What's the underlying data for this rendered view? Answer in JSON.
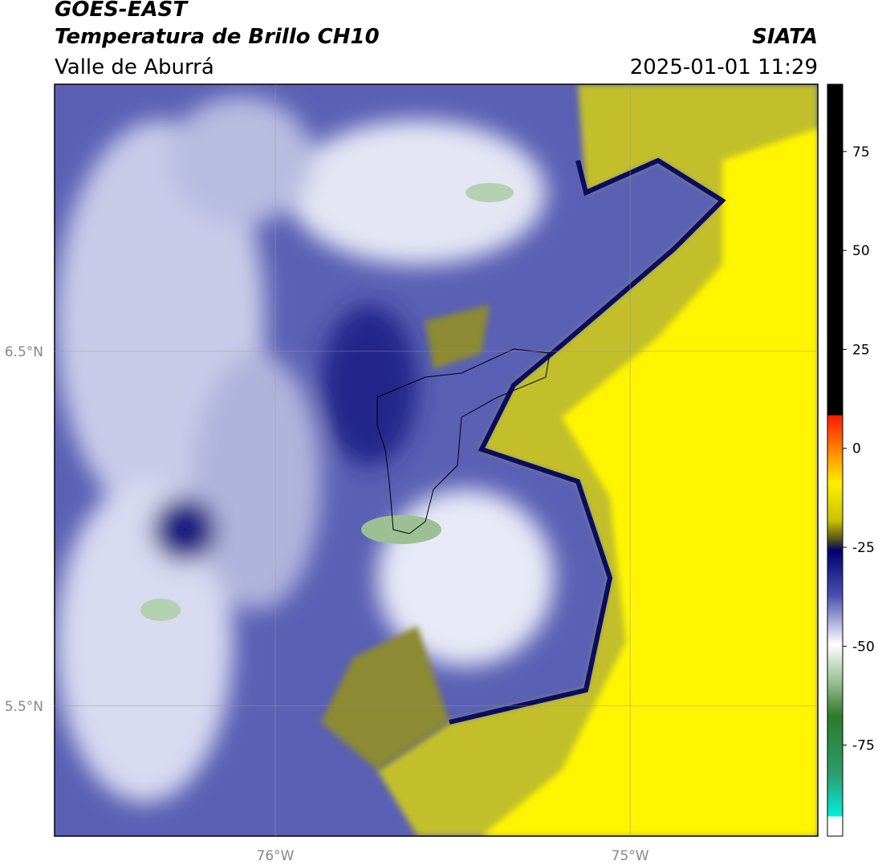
{
  "header": {
    "title": "GOES-EAST",
    "subtitle": "Temperatura de Brillo CH10",
    "region": "Valle de Aburrá",
    "source": "SIATA",
    "datetime": "2025-01-01 11:29"
  },
  "map": {
    "xlim": [
      -76.622,
      -74.471
    ],
    "ylim": [
      5.133,
      7.253
    ],
    "xticks": [
      {
        "value": -76,
        "label": "76°W"
      },
      {
        "value": -75,
        "label": "75°W"
      }
    ],
    "yticks": [
      {
        "value": 6.5,
        "label": "6.5°N"
      },
      {
        "value": 5.5,
        "label": "5.5°N"
      }
    ],
    "grid": true
  },
  "colorbar": {
    "lim": [
      -98,
      92
    ],
    "ticks": [
      75,
      50,
      25,
      0,
      -25,
      -50,
      -75
    ]
  }
}
